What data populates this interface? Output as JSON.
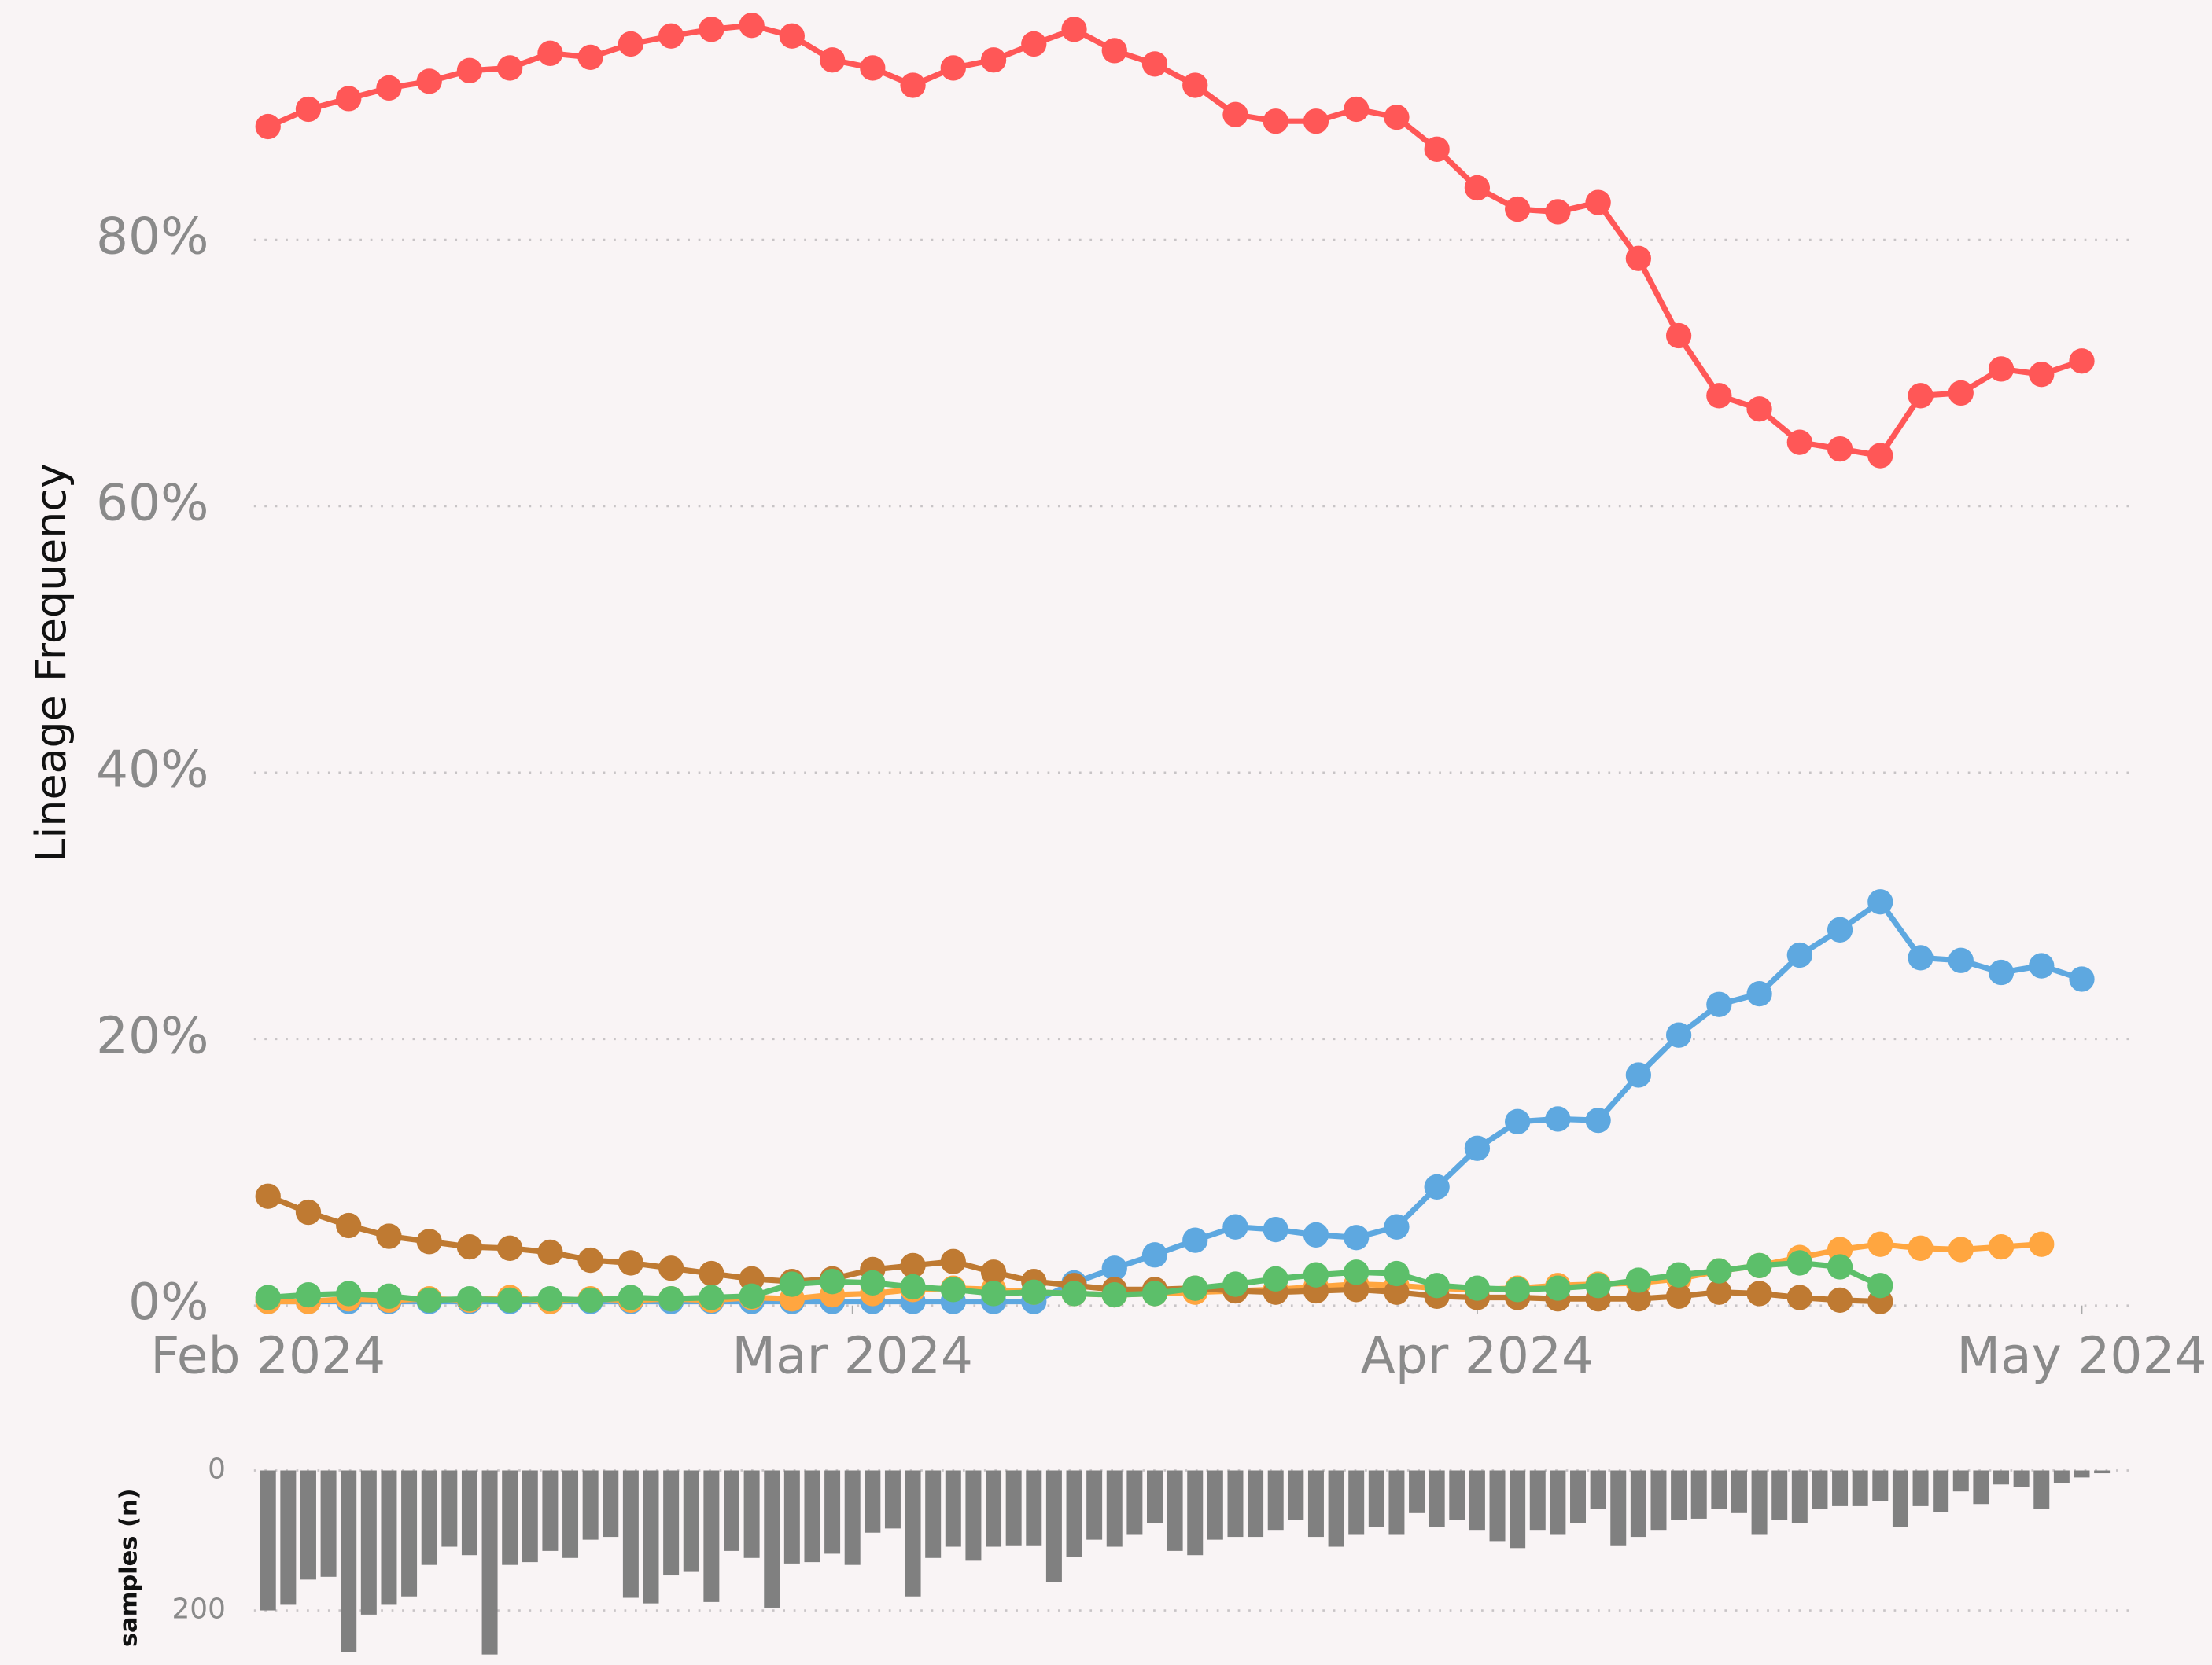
{
  "chart_data": [
    {
      "type": "scatter_line",
      "ylabel": "Lineage Frequency",
      "x": [
        0,
        2,
        4,
        6,
        8,
        10,
        12,
        14,
        16,
        18,
        20,
        22,
        24,
        26,
        28,
        30,
        32,
        34,
        36,
        38,
        40,
        42,
        44,
        46,
        48,
        50,
        52,
        54,
        56,
        58,
        60,
        62,
        64,
        66,
        68,
        70,
        72,
        74,
        76,
        78,
        80,
        82,
        84,
        86,
        88,
        90
      ],
      "xlim": [
        -0.7,
        92.4
      ],
      "xticks": [
        {
          "value": 0,
          "label": "Feb 2024"
        },
        {
          "value": 29,
          "label": "Mar 2024"
        },
        {
          "value": 60,
          "label": "Apr 2024"
        },
        {
          "value": 90,
          "label": "May 2024"
        }
      ],
      "ylim": [
        0,
        98
      ],
      "yticks": [
        {
          "value": 0,
          "label": "0%"
        },
        {
          "value": 20,
          "label": "20%"
        },
        {
          "value": 40,
          "label": "40%"
        },
        {
          "value": 60,
          "label": "60%"
        },
        {
          "value": 80,
          "label": "80%"
        }
      ],
      "grid": true,
      "series": [
        {
          "color": "#ff5757",
          "values": [
            88.5,
            89.8,
            90.6,
            91.4,
            91.9,
            92.7,
            92.9,
            94.0,
            93.7,
            94.7,
            95.3,
            95.8,
            96.1,
            95.3,
            93.5,
            92.9,
            91.6,
            92.9,
            93.5,
            94.7,
            95.8,
            94.2,
            93.2,
            91.6,
            89.4,
            88.9,
            88.9,
            89.8,
            89.2,
            86.8,
            83.9,
            82.3,
            82.1,
            82.8,
            78.6,
            72.8,
            68.3,
            67.3,
            64.8,
            64.3,
            63.8,
            68.3,
            68.5,
            70.3,
            69.9,
            70.9
          ]
        },
        {
          "color": "#5ea8e0",
          "values": [
            0.3,
            0.3,
            0.3,
            0.3,
            0.3,
            0.3,
            0.3,
            0.3,
            0.3,
            0.3,
            0.3,
            0.3,
            0.3,
            0.3,
            0.3,
            0.3,
            0.3,
            0.3,
            0.3,
            0.3,
            1.7,
            2.8,
            3.8,
            4.9,
            5.9,
            5.7,
            5.3,
            5.1,
            5.9,
            8.9,
            11.8,
            13.8,
            14.0,
            13.9,
            17.3,
            20.3,
            22.6,
            23.4,
            26.3,
            28.2,
            30.3,
            26.1,
            25.9,
            25.0,
            25.5,
            24.5
          ]
        },
        {
          "color": "#ffa640",
          "values": [
            0.3,
            0.3,
            0.5,
            0.4,
            0.5,
            0.4,
            0.6,
            0.3,
            0.5,
            0.4,
            0.5,
            0.4,
            0.6,
            0.5,
            0.8,
            0.9,
            1.2,
            1.3,
            1.2,
            1.0,
            0.9,
            0.8,
            0.9,
            1.0,
            1.1,
            1.2,
            1.4,
            1.6,
            1.5,
            1.3,
            1.2,
            1.3,
            1.5,
            1.6,
            1.7,
            2.0,
            2.6,
            3.0,
            3.6,
            4.2,
            4.6,
            4.3,
            4.2,
            4.4,
            4.6,
            null
          ]
        },
        {
          "color": "#bf7a32",
          "values": [
            8.2,
            7.0,
            6.0,
            5.2,
            4.8,
            4.4,
            4.3,
            4.0,
            3.4,
            3.2,
            2.8,
            2.4,
            2.0,
            1.8,
            2.0,
            2.7,
            3.0,
            3.3,
            2.5,
            1.8,
            1.5,
            1.2,
            1.2,
            1.3,
            1.1,
            1.0,
            1.1,
            1.2,
            1.0,
            0.7,
            0.6,
            0.6,
            0.5,
            0.5,
            0.5,
            0.7,
            1.0,
            0.9,
            0.6,
            0.4,
            0.3,
            null,
            null,
            null,
            null,
            null
          ]
        },
        {
          "color": "#5cbf6a",
          "values": [
            0.6,
            0.8,
            0.9,
            0.7,
            0.4,
            0.5,
            0.4,
            0.5,
            0.4,
            0.6,
            0.5,
            0.6,
            0.7,
            1.6,
            1.8,
            1.7,
            1.4,
            1.2,
            0.9,
            1.0,
            0.9,
            0.8,
            0.9,
            1.3,
            1.6,
            2.0,
            2.3,
            2.5,
            2.4,
            1.5,
            1.3,
            1.2,
            1.3,
            1.5,
            1.9,
            2.3,
            2.6,
            3.0,
            3.2,
            2.9,
            1.5,
            null,
            null,
            null,
            null,
            null
          ]
        }
      ]
    },
    {
      "type": "bar",
      "ylabel": "samples (n)",
      "color": "#808080",
      "x": [
        0,
        1,
        2,
        3,
        4,
        5,
        6,
        7,
        8,
        9,
        10,
        11,
        12,
        13,
        14,
        15,
        16,
        17,
        18,
        19,
        20,
        21,
        22,
        23,
        24,
        25,
        26,
        27,
        28,
        29,
        30,
        31,
        32,
        33,
        34,
        35,
        36,
        37,
        38,
        39,
        40,
        41,
        42,
        43,
        44,
        45,
        46,
        47,
        48,
        49,
        50,
        51,
        52,
        53,
        54,
        55,
        56,
        57,
        58,
        59,
        60,
        61,
        62,
        63,
        64,
        65,
        66,
        67,
        68,
        69,
        70,
        71,
        72,
        73,
        74,
        75,
        76,
        77,
        78,
        79,
        80,
        81,
        82,
        83,
        84,
        85,
        86,
        87,
        88,
        89,
        90,
        91
      ],
      "values": [
        200,
        192,
        156,
        152,
        260,
        206,
        192,
        180,
        135,
        109,
        121,
        263,
        135,
        131,
        115,
        125,
        99,
        95,
        182,
        190,
        150,
        145,
        188,
        115,
        125,
        196,
        133,
        131,
        119,
        135,
        89,
        83,
        180,
        125,
        109,
        129,
        109,
        107,
        107,
        160,
        123,
        99,
        109,
        91,
        75,
        115,
        121,
        99,
        95,
        95,
        85,
        71,
        95,
        109,
        91,
        81,
        91,
        61,
        81,
        71,
        85,
        101,
        111,
        85,
        91,
        75,
        55,
        107,
        95,
        85,
        71,
        69,
        55,
        61,
        91,
        71,
        75,
        55,
        51,
        51,
        44,
        81,
        51,
        59,
        30,
        48,
        20,
        24,
        55,
        18,
        10,
        4
      ],
      "xlim": [
        -0.7,
        92.4
      ],
      "ylim": [
        0,
        278
      ],
      "y_inverted": true,
      "yticks": [
        0,
        200
      ],
      "grid": true
    }
  ]
}
